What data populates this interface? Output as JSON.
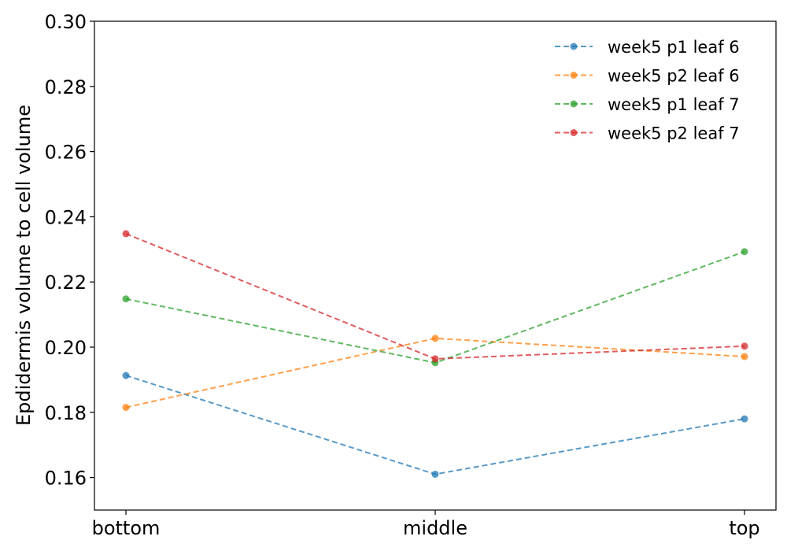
{
  "chart_data": {
    "type": "line",
    "title": "",
    "xlabel": "",
    "ylabel": "Epdidermis volume to cell volume",
    "categories": [
      "bottom",
      "middle",
      "top"
    ],
    "ylim": [
      0.15,
      0.3
    ],
    "yticks": [
      "0.16",
      "0.18",
      "0.20",
      "0.22",
      "0.24",
      "0.26",
      "0.28",
      "0.30"
    ],
    "grid": false,
    "legend_position": "top-right",
    "line_style": "dashed",
    "series": [
      {
        "name": "week5 p1 leaf 6",
        "color": "#1f77b4",
        "values": [
          0.1913,
          0.161,
          0.178
        ]
      },
      {
        "name": "week5 p2 leaf 6",
        "color": "#ff7f0e",
        "values": [
          0.1815,
          0.2027,
          0.1971
        ]
      },
      {
        "name": "week5 p1 leaf 7",
        "color": "#2ca02c",
        "values": [
          0.2148,
          0.1952,
          0.2293
        ]
      },
      {
        "name": "week5 p2 leaf 7",
        "color": "#d62728",
        "values": [
          0.2348,
          0.1964,
          0.2003
        ]
      }
    ]
  }
}
